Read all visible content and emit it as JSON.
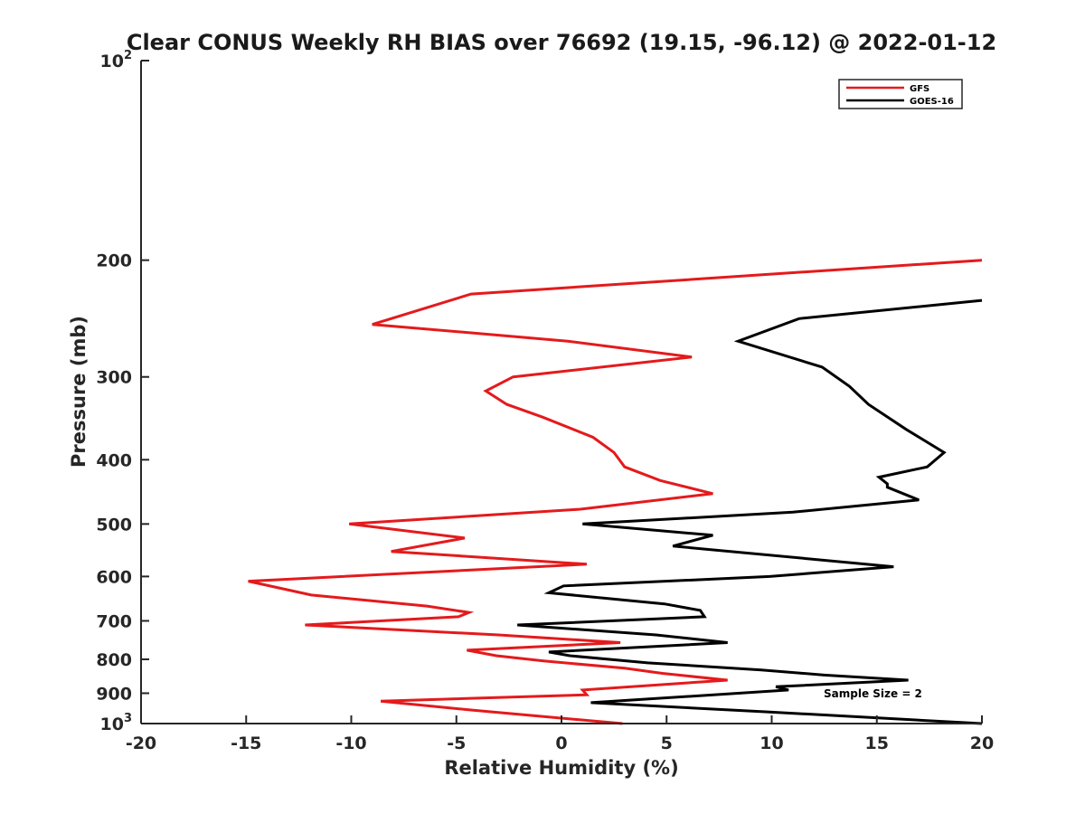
{
  "chart_data": {
    "type": "line",
    "title": "Clear CONUS Weekly RH BIAS over 76692 (19.15, -96.12) @ 2022-01-12",
    "xlabel": "Relative Humidity (%)",
    "ylabel": "Pressure (mb)",
    "xlim": [
      -20,
      20
    ],
    "ylim": [
      100,
      1000
    ],
    "yscale": "log",
    "yreversed": true,
    "xticks": [
      -20,
      -15,
      -10,
      -5,
      0,
      5,
      10,
      15,
      20
    ],
    "yticks": [
      {
        "value": 100,
        "label": "10",
        "exp": "2"
      },
      {
        "value": 200,
        "label": "200",
        "exp": ""
      },
      {
        "value": 300,
        "label": "300",
        "exp": ""
      },
      {
        "value": 400,
        "label": "400",
        "exp": ""
      },
      {
        "value": 500,
        "label": "500",
        "exp": ""
      },
      {
        "value": 600,
        "label": "600",
        "exp": ""
      },
      {
        "value": 700,
        "label": "700",
        "exp": ""
      },
      {
        "value": 800,
        "label": "800",
        "exp": ""
      },
      {
        "value": 900,
        "label": "900",
        "exp": ""
      },
      {
        "value": 1000,
        "label": "10",
        "exp": "3"
      }
    ],
    "legend_position": "top-right",
    "annotation": "Sample Size = 2",
    "series": [
      {
        "name": "GFS",
        "color": "#e41a1c",
        "points": [
          [
            20,
            200
          ],
          [
            -4.3,
            225
          ],
          [
            -9.0,
            250
          ],
          [
            0.3,
            265
          ],
          [
            6.2,
            280
          ],
          [
            -2.3,
            300
          ],
          [
            -3.6,
            315
          ],
          [
            -2.6,
            330
          ],
          [
            -0.9,
            345
          ],
          [
            1.5,
            370
          ],
          [
            2.5,
            390
          ],
          [
            3.0,
            410
          ],
          [
            4.7,
            430
          ],
          [
            7.2,
            450
          ],
          [
            0.9,
            475
          ],
          [
            -10.1,
            500
          ],
          [
            -4.6,
            525
          ],
          [
            -8.1,
            550
          ],
          [
            1.2,
            575
          ],
          [
            -14.9,
            610
          ],
          [
            -11.9,
            640
          ],
          [
            -6.4,
            665
          ],
          [
            -4.4,
            680
          ],
          [
            -4.9,
            690
          ],
          [
            -12.2,
            710
          ],
          [
            -3.0,
            735
          ],
          [
            2.8,
            755
          ],
          [
            -4.5,
            775
          ],
          [
            -3.1,
            790
          ],
          [
            -0.8,
            805
          ],
          [
            3.0,
            825
          ],
          [
            4.8,
            840
          ],
          [
            7.9,
            860
          ],
          [
            1.0,
            890
          ],
          [
            1.2,
            905
          ],
          [
            -8.6,
            925
          ],
          [
            -4.2,
            955
          ],
          [
            2.9,
            1000
          ]
        ]
      },
      {
        "name": "GOES-16",
        "color": "#000000",
        "points": [
          [
            20,
            230
          ],
          [
            11.3,
            245
          ],
          [
            8.4,
            265
          ],
          [
            12.4,
            290
          ],
          [
            13.7,
            310
          ],
          [
            14.6,
            330
          ],
          [
            16.4,
            360
          ],
          [
            18.2,
            390
          ],
          [
            17.4,
            410
          ],
          [
            15.1,
            425
          ],
          [
            15.5,
            435
          ],
          [
            15.5,
            440
          ],
          [
            17.0,
            460
          ],
          [
            11.0,
            480
          ],
          [
            1.0,
            500
          ],
          [
            7.2,
            520
          ],
          [
            5.3,
            540
          ],
          [
            15.8,
            580
          ],
          [
            9.9,
            600
          ],
          [
            0.1,
            620
          ],
          [
            -0.6,
            635
          ],
          [
            4.9,
            660
          ],
          [
            6.6,
            675
          ],
          [
            6.8,
            690
          ],
          [
            -2.1,
            710
          ],
          [
            4.5,
            735
          ],
          [
            7.9,
            755
          ],
          [
            -0.6,
            780
          ],
          [
            0.4,
            790
          ],
          [
            4.1,
            810
          ],
          [
            9.5,
            830
          ],
          [
            12.5,
            845
          ],
          [
            16.5,
            860
          ],
          [
            10.2,
            880
          ],
          [
            10.8,
            890
          ],
          [
            1.4,
            930
          ],
          [
            9.7,
            960
          ],
          [
            20,
            1000
          ]
        ]
      }
    ]
  }
}
